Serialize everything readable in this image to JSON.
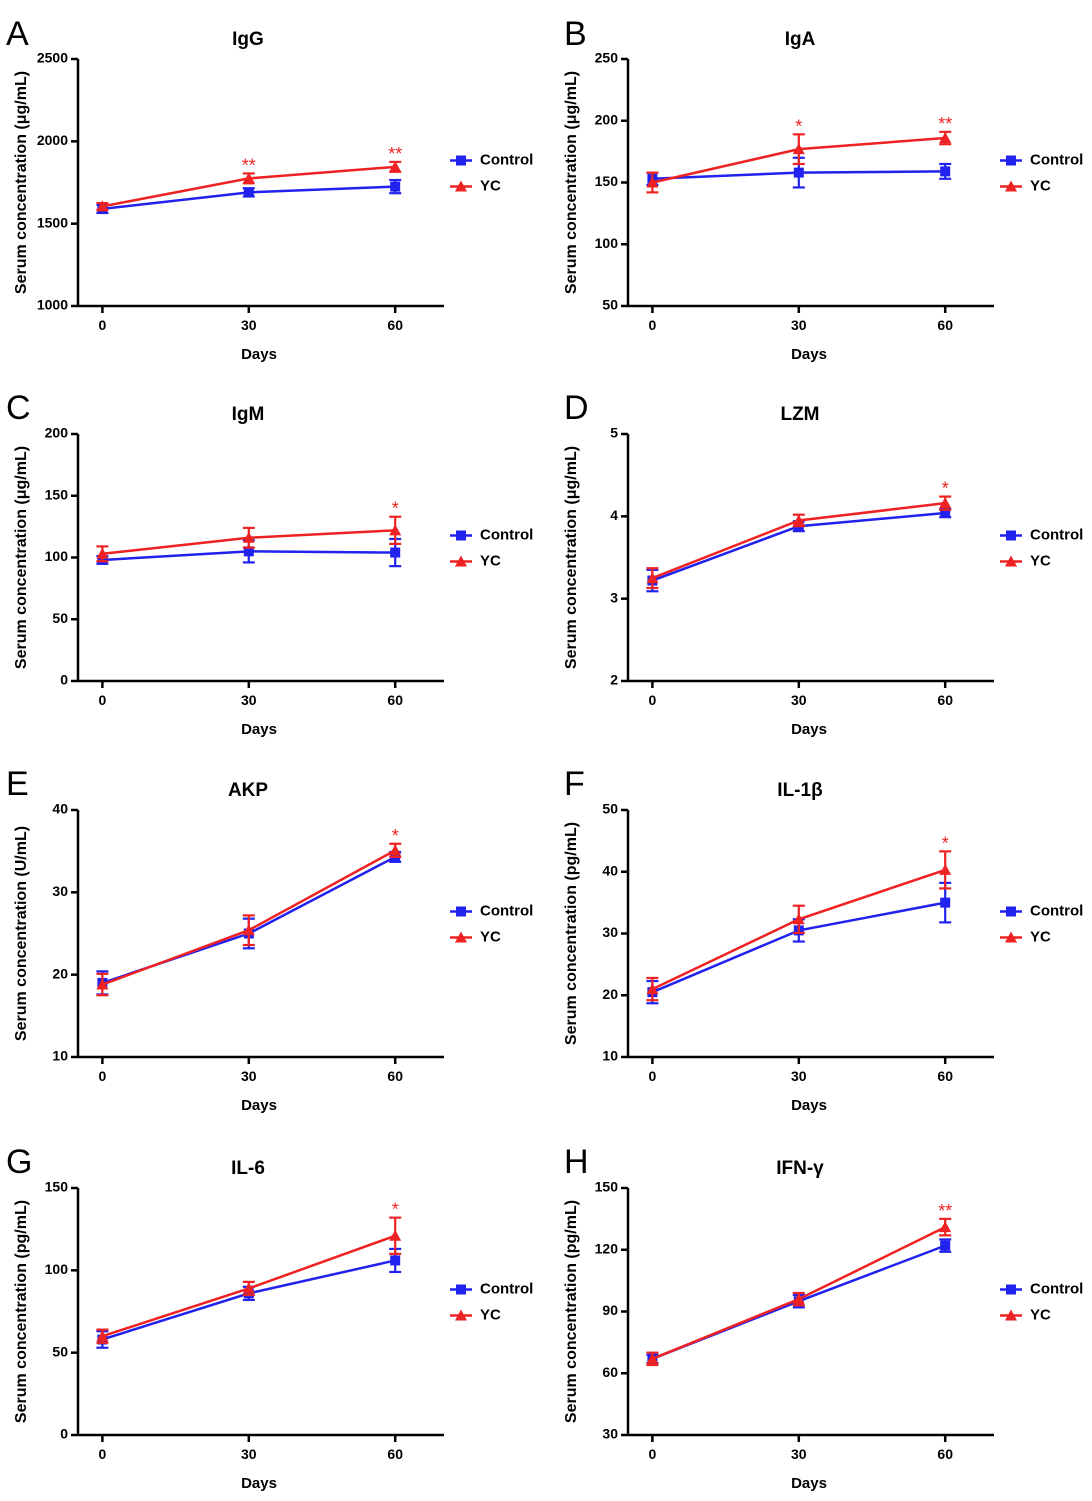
{
  "figure": {
    "xlabel": "Days",
    "colors": {
      "Control": "#2222ee",
      "YC": "#ee2222",
      "axis": "#000000"
    }
  },
  "chart_data": [
    {
      "type": "line",
      "letter": "A",
      "title": "IgG",
      "xlabel": "Days",
      "ylabel": "Serum concentration (μg/mL)",
      "x": [
        0,
        30,
        60
      ],
      "xlim": [
        -5,
        70
      ],
      "xticks": [
        0,
        30,
        60
      ],
      "ylim": [
        1000,
        2500
      ],
      "yticks": [
        1000,
        1500,
        2000,
        2500
      ],
      "series": [
        {
          "name": "Control",
          "marker": "square",
          "values": [
            1590,
            1690,
            1725
          ],
          "errors": [
            25,
            25,
            40
          ]
        },
        {
          "name": "YC",
          "marker": "triangle",
          "values": [
            1605,
            1775,
            1845
          ],
          "errors": [
            20,
            30,
            30
          ]
        }
      ],
      "significance": [
        {
          "x": 30,
          "label": "**"
        },
        {
          "x": 60,
          "label": "**"
        }
      ]
    },
    {
      "type": "line",
      "letter": "B",
      "title": "IgA",
      "xlabel": "Days",
      "ylabel": "Serum concentration (μg/mL)",
      "x": [
        0,
        30,
        60
      ],
      "xlim": [
        -5,
        70
      ],
      "xticks": [
        0,
        30,
        60
      ],
      "ylim": [
        50,
        250
      ],
      "yticks": [
        50,
        100,
        150,
        200,
        250
      ],
      "series": [
        {
          "name": "Control",
          "marker": "square",
          "values": [
            153,
            158,
            159
          ],
          "errors": [
            5,
            12,
            6
          ]
        },
        {
          "name": "YC",
          "marker": "triangle",
          "values": [
            150,
            177,
            186
          ],
          "errors": [
            8,
            12,
            5
          ]
        }
      ],
      "significance": [
        {
          "x": 30,
          "label": "*"
        },
        {
          "x": 60,
          "label": "**"
        }
      ]
    },
    {
      "type": "line",
      "letter": "C",
      "title": "IgM",
      "xlabel": "Days",
      "ylabel": "Serum concentration (μg/mL)",
      "x": [
        0,
        30,
        60
      ],
      "xlim": [
        -5,
        70
      ],
      "xticks": [
        0,
        30,
        60
      ],
      "ylim": [
        0,
        200
      ],
      "yticks": [
        0,
        50,
        100,
        150,
        200
      ],
      "series": [
        {
          "name": "Control",
          "marker": "square",
          "values": [
            98,
            105,
            104
          ],
          "errors": [
            3,
            9,
            11
          ]
        },
        {
          "name": "YC",
          "marker": "triangle",
          "values": [
            103,
            116,
            122
          ],
          "errors": [
            6,
            8,
            11
          ]
        }
      ],
      "significance": [
        {
          "x": 60,
          "label": "*"
        }
      ]
    },
    {
      "type": "line",
      "letter": "D",
      "title": "LZM",
      "xlabel": "Days",
      "ylabel": "Serum concentration (μg/mL)",
      "x": [
        0,
        30,
        60
      ],
      "xlim": [
        -5,
        70
      ],
      "xticks": [
        0,
        30,
        60
      ],
      "ylim": [
        2,
        5
      ],
      "yticks": [
        2,
        3,
        4,
        5
      ],
      "series": [
        {
          "name": "Control",
          "marker": "square",
          "values": [
            3.22,
            3.88,
            4.04
          ],
          "errors": [
            0.13,
            0.06,
            0.05
          ]
        },
        {
          "name": "YC",
          "marker": "triangle",
          "values": [
            3.25,
            3.95,
            4.16
          ],
          "errors": [
            0.12,
            0.07,
            0.08
          ]
        }
      ],
      "significance": [
        {
          "x": 60,
          "label": "*"
        }
      ]
    },
    {
      "type": "line",
      "letter": "E",
      "title": "AKP",
      "xlabel": "Days",
      "ylabel": "Serum concentration (U/mL)",
      "x": [
        0,
        30,
        60
      ],
      "xlim": [
        -5,
        70
      ],
      "xticks": [
        0,
        30,
        60
      ],
      "ylim": [
        10,
        40
      ],
      "yticks": [
        10,
        20,
        30,
        40
      ],
      "series": [
        {
          "name": "Control",
          "marker": "square",
          "values": [
            19.0,
            25.0,
            34.3
          ],
          "errors": [
            1.4,
            1.8,
            0.6
          ]
        },
        {
          "name": "YC",
          "marker": "triangle",
          "values": [
            18.8,
            25.4,
            35.1
          ],
          "errors": [
            1.3,
            1.8,
            0.8
          ]
        }
      ],
      "significance": [
        {
          "x": 60,
          "label": "*"
        }
      ]
    },
    {
      "type": "line",
      "letter": "F",
      "title": "IL-1β",
      "xlabel": "Days",
      "ylabel": "Serum concentration (pg/mL)",
      "x": [
        0,
        30,
        60
      ],
      "xlim": [
        -5,
        70
      ],
      "xticks": [
        0,
        30,
        60
      ],
      "ylim": [
        10,
        50
      ],
      "yticks": [
        10,
        20,
        30,
        40,
        50
      ],
      "series": [
        {
          "name": "Control",
          "marker": "square",
          "values": [
            20.5,
            30.5,
            35.0
          ],
          "errors": [
            1.8,
            1.8,
            3.2
          ]
        },
        {
          "name": "YC",
          "marker": "triangle",
          "values": [
            21.0,
            32.3,
            40.3
          ],
          "errors": [
            1.8,
            2.2,
            3.0
          ]
        }
      ],
      "significance": [
        {
          "x": 60,
          "label": "*"
        }
      ]
    },
    {
      "type": "line",
      "letter": "G",
      "title": "IL-6",
      "xlabel": "Days",
      "ylabel": "Serum concentration (pg/mL)",
      "x": [
        0,
        30,
        60
      ],
      "xlim": [
        -5,
        70
      ],
      "xticks": [
        0,
        30,
        60
      ],
      "ylim": [
        0,
        150
      ],
      "yticks": [
        0,
        50,
        100,
        150
      ],
      "series": [
        {
          "name": "Control",
          "marker": "square",
          "values": [
            58,
            86,
            106
          ],
          "errors": [
            5,
            4,
            7
          ]
        },
        {
          "name": "YC",
          "marker": "triangle",
          "values": [
            60,
            89,
            121
          ],
          "errors": [
            4,
            4,
            11
          ]
        }
      ],
      "significance": [
        {
          "x": 60,
          "label": "*"
        }
      ]
    },
    {
      "type": "line",
      "letter": "H",
      "title": "IFN-γ",
      "xlabel": "Days",
      "ylabel": "Serum concentration (pg/mL)",
      "x": [
        0,
        30,
        60
      ],
      "xlim": [
        -5,
        70
      ],
      "xticks": [
        0,
        30,
        60
      ],
      "ylim": [
        30,
        150
      ],
      "yticks": [
        30,
        60,
        90,
        120,
        150
      ],
      "series": [
        {
          "name": "Control",
          "marker": "square",
          "values": [
            67,
            95,
            122
          ],
          "errors": [
            2,
            3,
            3
          ]
        },
        {
          "name": "YC",
          "marker": "triangle",
          "values": [
            67,
            96,
            131
          ],
          "errors": [
            3,
            3,
            4
          ]
        }
      ],
      "significance": [
        {
          "x": 60,
          "label": "**"
        }
      ]
    }
  ]
}
